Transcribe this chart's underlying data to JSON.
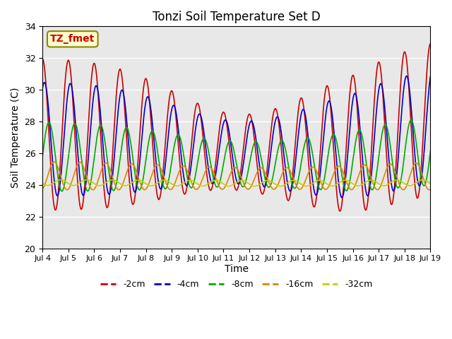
{
  "title": "Tonzi Soil Temperature Set D",
  "xlabel": "Time",
  "ylabel": "Soil Temperature (C)",
  "ylim": [
    20,
    34
  ],
  "xlim": [
    0,
    15
  ],
  "xtick_labels": [
    "Jul 4",
    "Jul 5",
    "Jul 6",
    "Jul 7",
    "Jul 8",
    "Jul 9",
    "Jul 10",
    "Jul 11",
    "Jul 12",
    "Jul 13",
    "Jul 14",
    "Jul 15",
    "Jul 16",
    "Jul 17",
    "Jul 18",
    "Jul 19"
  ],
  "xtick_positions": [
    0,
    1,
    2,
    3,
    4,
    5,
    6,
    7,
    8,
    9,
    10,
    11,
    12,
    13,
    14,
    15
  ],
  "legend_labels": [
    "-2cm",
    "-4cm",
    "-8cm",
    "-16cm",
    "-32cm"
  ],
  "line_colors": [
    "#cc0000",
    "#0000cc",
    "#00aa00",
    "#dd8800",
    "#cccc00"
  ],
  "annotation_text": "TZ_fmet",
  "annotation_color": "#cc0000",
  "annotation_bg": "#ffffcc",
  "annotation_border": "#888800",
  "bg_color": "#e8e8e8",
  "grid_color": "#ffffff"
}
